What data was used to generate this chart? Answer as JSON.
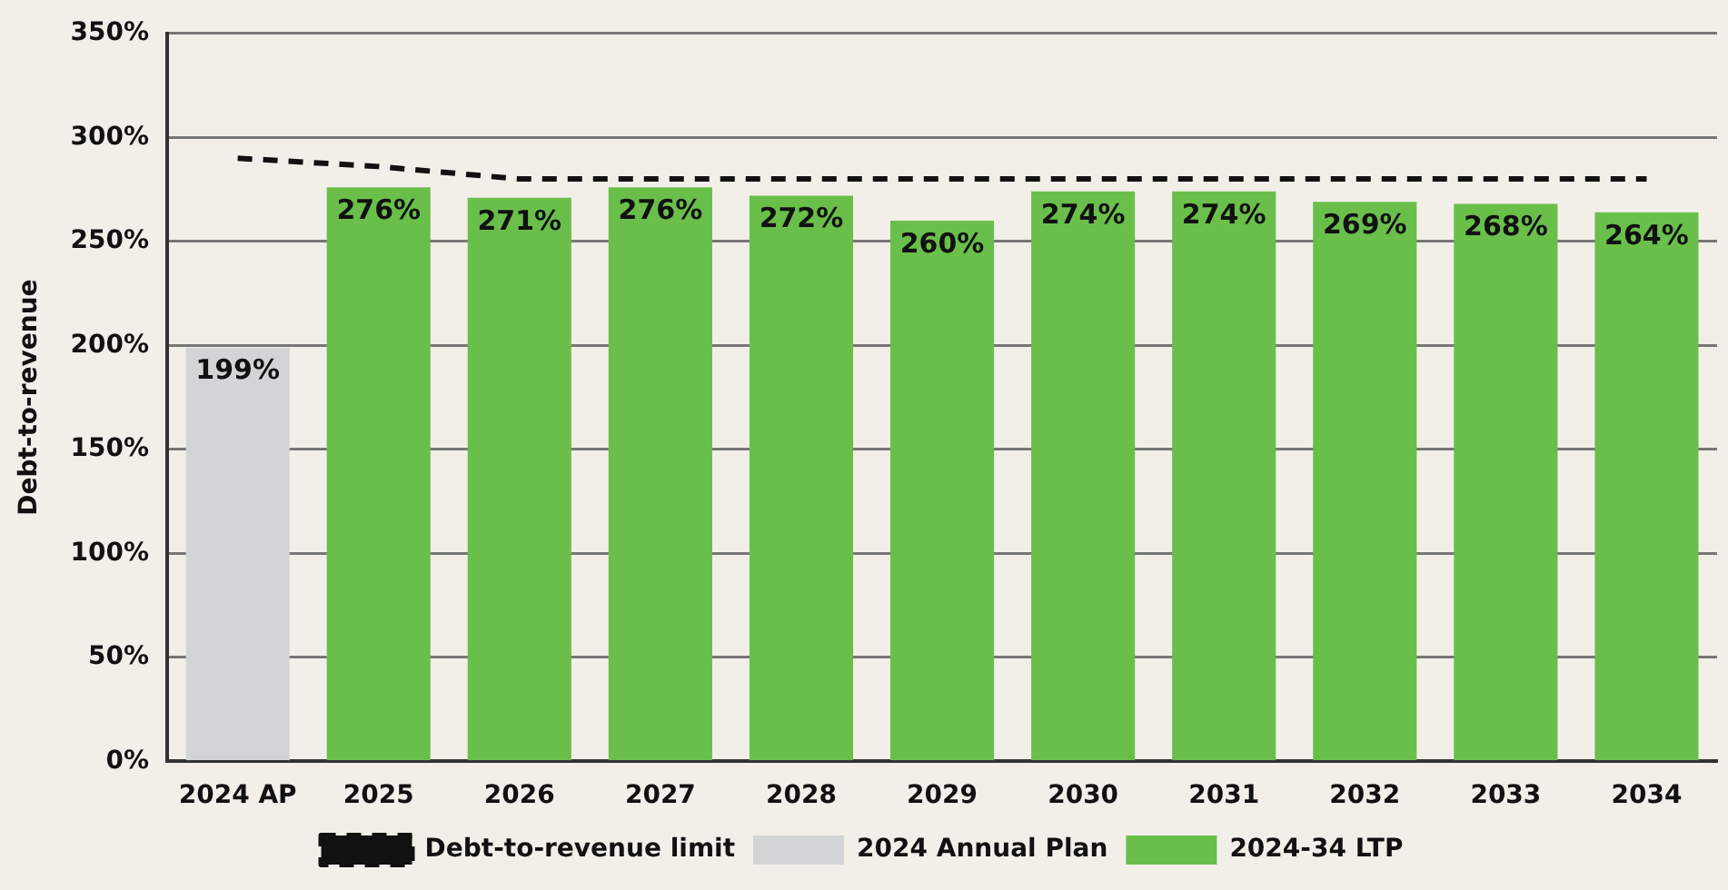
{
  "chart_data": {
    "type": "bar",
    "ylabel": "Debt-to-revenue",
    "categories": [
      "2024 AP",
      "2025",
      "2026",
      "2027",
      "2028",
      "2029",
      "2030",
      "2031",
      "2032",
      "2033",
      "2034"
    ],
    "series": [
      {
        "name": "2024 Annual Plan",
        "color": "#d3d4d6",
        "values": [
          199,
          null,
          null,
          null,
          null,
          null,
          null,
          null,
          null,
          null,
          null
        ],
        "value_labels": [
          "199%",
          null,
          null,
          null,
          null,
          null,
          null,
          null,
          null,
          null,
          null
        ]
      },
      {
        "name": "2024-34 LTP",
        "color": "#6abf4b",
        "values": [
          null,
          276,
          271,
          276,
          272,
          260,
          274,
          274,
          269,
          268,
          264
        ],
        "value_labels": [
          null,
          "276%",
          "271%",
          "276%",
          "272%",
          "260%",
          "274%",
          "274%",
          "269%",
          "268%",
          "264%"
        ]
      },
      {
        "name": "Debt-to-revenue limit",
        "type": "line",
        "color": "#111111",
        "line_style": "dashed",
        "marker": "none",
        "values": [
          290,
          286,
          280,
          280,
          280,
          280,
          280,
          280,
          280,
          280,
          280
        ]
      }
    ],
    "ylim": [
      0,
      350
    ],
    "yticks": [
      {
        "value": 0,
        "label": "0%"
      },
      {
        "value": 50,
        "label": "50%"
      },
      {
        "value": 100,
        "label": "100%"
      },
      {
        "value": 150,
        "label": "150%"
      },
      {
        "value": 200,
        "label": "200%"
      },
      {
        "value": 250,
        "label": "250%"
      },
      {
        "value": 300,
        "label": "300%"
      },
      {
        "value": 350,
        "label": "350%"
      }
    ],
    "grid": "y",
    "legend": "bottom"
  }
}
